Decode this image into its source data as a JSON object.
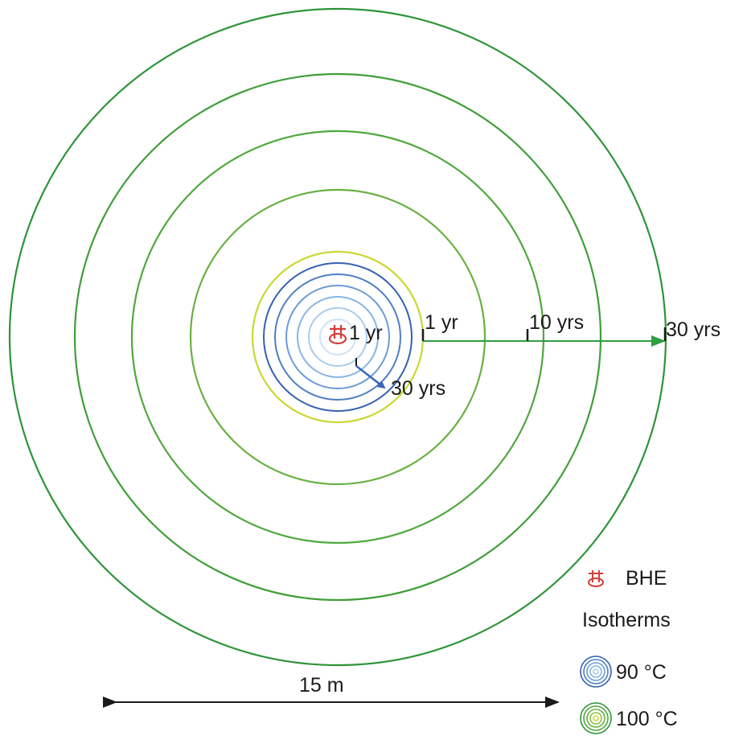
{
  "labels": {
    "inner_start": "1 yr",
    "inner_end": "30 yrs",
    "outer_start": "1 yr",
    "outer_mid": "10 yrs",
    "outer_end": "30 yrs",
    "scale": "15 m"
  },
  "legend": {
    "bhe": "BHE",
    "isotherms": "Isotherms",
    "iso_90": "90 °C",
    "iso_100": "100 °C"
  },
  "colors": {
    "bhe": "#d13f3a",
    "isotherm_90": [
      "#cfe3f5",
      "#a9cdec",
      "#86b6e2",
      "#6b9bd4",
      "#4e7ec5",
      "#3460b0"
    ],
    "isotherm_100": [
      "#c9d834",
      "#8bc34a",
      "#68b143",
      "#4fa83d",
      "#3f9e38",
      "#2e9438"
    ],
    "arrow_90": "#3a66b8",
    "arrow_100": "#2e9e3f",
    "scale_bar": "#1a1a1a"
  }
}
